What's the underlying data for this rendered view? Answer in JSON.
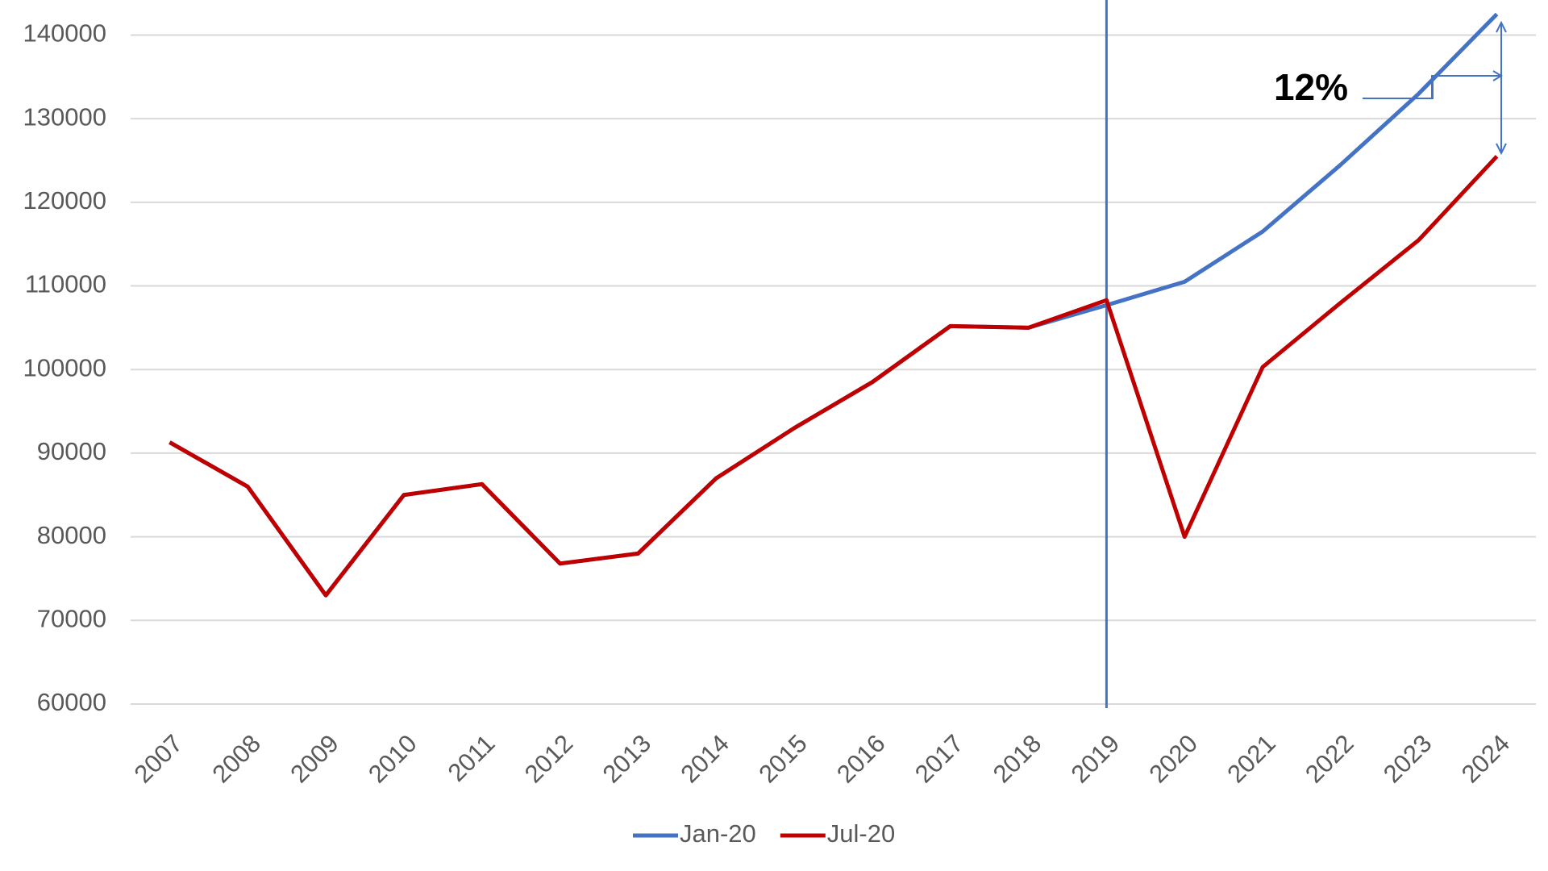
{
  "chart_data": {
    "type": "line",
    "categories": [
      "2007",
      "2008",
      "2009",
      "2010",
      "2011",
      "2012",
      "2013",
      "2014",
      "2015",
      "2016",
      "2017",
      "2018",
      "2019",
      "2020",
      "2021",
      "2022",
      "2023",
      "2024"
    ],
    "series": [
      {
        "name": "Jan-20",
        "color": "#4472c4",
        "values": [
          91300,
          86000,
          73000,
          85000,
          86300,
          76800,
          78000,
          87000,
          93000,
          98500,
          105200,
          105000,
          107700,
          110500,
          116500,
          124500,
          133000,
          142500
        ]
      },
      {
        "name": "Jul-20",
        "color": "#c00000",
        "values": [
          91300,
          86000,
          73000,
          85000,
          86300,
          76800,
          78000,
          87000,
          93000,
          98500,
          105200,
          105000,
          108300,
          80000,
          100300,
          108000,
          115500,
          125500
        ]
      }
    ],
    "ylim": [
      60000,
      144000
    ],
    "yticks": [
      60000,
      70000,
      80000,
      90000,
      100000,
      110000,
      120000,
      130000,
      140000
    ],
    "grid": true,
    "vline_x": "2019",
    "vline_color": "#4472c4",
    "legend": "bottom",
    "annotation": "12%"
  }
}
